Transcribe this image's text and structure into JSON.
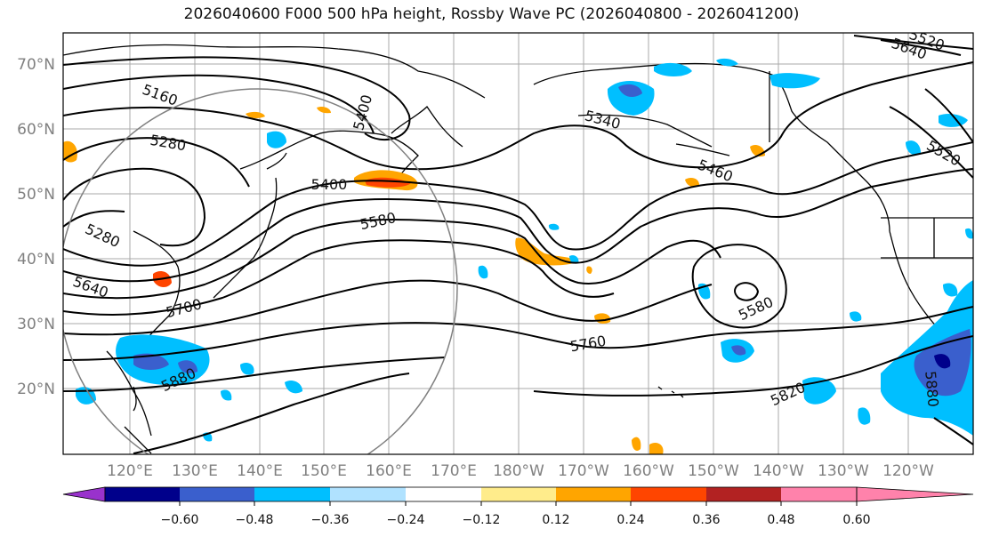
{
  "title": "2026040600 F000 500 hPa height, Rossby Wave PC (2026040800 - 2026041200)",
  "lat_labels": [
    "70°N",
    "60°N",
    "50°N",
    "40°N",
    "30°N",
    "20°N"
  ],
  "lon_labels": [
    "120°E",
    "130°E",
    "140°E",
    "150°E",
    "160°E",
    "170°E",
    "180°W",
    "170°W",
    "160°W",
    "150°W",
    "140°W",
    "130°W",
    "120°W"
  ],
  "contour_labels": [
    "5160",
    "5280",
    "5400",
    "5580",
    "5280",
    "5640",
    "5700",
    "5880",
    "5340",
    "5460",
    "5520",
    "5580",
    "5760",
    "5820",
    "5880",
    "5400",
    "5640",
    "5520"
  ],
  "colorbar": {
    "colors": [
      "#9932CC",
      "#00008B",
      "#3A5FCD",
      "#00BFFF",
      "#B0E2FF",
      "#FFFFFF",
      "#FFEC8B",
      "#FFA500",
      "#FF4500",
      "#B22222",
      "#FF82AB"
    ],
    "tick_labels": [
      "−0.60",
      "−0.48",
      "−0.36",
      "−0.24",
      "−0.12",
      "0.12",
      "0.24",
      "0.36",
      "0.48",
      "0.60"
    ]
  }
}
